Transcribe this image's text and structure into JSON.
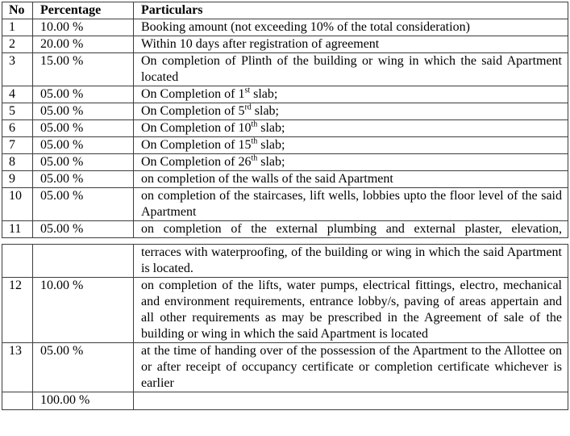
{
  "doc": {
    "kind": "payment-schedule-table",
    "colors": {
      "text": "#000000",
      "border": "#3d3d3d",
      "background": "#ffffff"
    },
    "headers": {
      "no": "No",
      "percentage": "Percentage",
      "particulars": "Particulars"
    },
    "table1": {
      "rows": [
        {
          "no": "1",
          "pct": "10.00 %",
          "pre": "Booking amount (not exceeding 10% of the total consideration)"
        },
        {
          "no": "2",
          "pct": "20.00 %",
          "pre": "Within 10 days after registration of agreement"
        },
        {
          "no": "3",
          "pct": "15.00 %",
          "pre": "On completion of Plinth of the building or wing in which the said Apartment located"
        },
        {
          "no": "4",
          "pct": "05.00 %",
          "pre": "On Completion of 1",
          "sup": "st",
          "post": " slab;"
        },
        {
          "no": "5",
          "pct": "05.00 %",
          "pre": "On Completion of 5",
          "sup": "rd",
          "post": " slab;"
        },
        {
          "no": "6",
          "pct": "05.00 %",
          "pre": "On Completion of 10",
          "sup": "th",
          "post": " slab;"
        },
        {
          "no": "7",
          "pct": "05.00 %",
          "pre": "On Completion of 15",
          "sup": "th",
          "post": " slab;"
        },
        {
          "no": "8",
          "pct": "05.00 %",
          "pre": "On Completion of 26",
          "sup": "th",
          "post": " slab;"
        },
        {
          "no": "9",
          "pct": "05.00 %",
          "pre": "on completion of the walls of the said Apartment"
        },
        {
          "no": "10",
          "pct": "05.00 %",
          "pre": "on completion of the staircases, lift wells, lobbies upto the floor level of the said Apartment"
        },
        {
          "no": "11",
          "pct": "05.00 %",
          "pre": "on completion of the external plumbing and external plaster, elevation,"
        }
      ]
    },
    "table2": {
      "rows": [
        {
          "no": "",
          "pct": "",
          "pre": "terraces with waterproofing, of the building or wing in which the said Apartment is located."
        },
        {
          "no": "12",
          "pct": "10.00 %",
          "pre": "on completion of the lifts, water pumps, electrical fittings, electro, mechanical and environment requirements, entrance lobby/s, paving of areas appertain and all other requirements as may be prescribed in the Agreement of sale of the building or wing in which the said Apartment is located"
        },
        {
          "no": "13",
          "pct": "05.00 %",
          "pre": "at the time of handing over of the possession of the Apartment to the Allottee on or after receipt of occupancy certificate or completion certificate whichever is earlier"
        },
        {
          "no": "",
          "pct": "100.00 %",
          "pre": ""
        }
      ]
    }
  }
}
